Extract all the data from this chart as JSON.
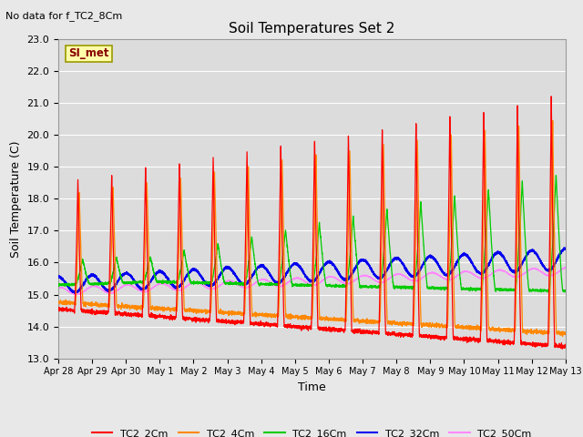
{
  "title": "Soil Temperatures Set 2",
  "top_left_note": "No data for f_TC2_8Cm",
  "xlabel": "Time",
  "ylabel": "Soil Temperature (C)",
  "ylim": [
    13.0,
    23.0
  ],
  "yticks": [
    13.0,
    14.0,
    15.0,
    16.0,
    17.0,
    18.0,
    19.0,
    20.0,
    21.0,
    22.0,
    23.0
  ],
  "fig_bg_color": "#e8e8e8",
  "plot_bg_color": "#dcdcdc",
  "annotation_text": "SI_met",
  "annotation_bg": "#ffffaa",
  "annotation_border": "#999900",
  "annotation_text_color": "#880000",
  "series_colors": {
    "TC2_2Cm": "#ff0000",
    "TC2_4Cm": "#ff8800",
    "TC2_16Cm": "#00cc00",
    "TC2_32Cm": "#0000ee",
    "TC2_50Cm": "#ff88ff"
  },
  "x_tick_labels": [
    "Apr 28",
    "Apr 29",
    "Apr 30",
    "May 1",
    "May 2",
    "May 3",
    "May 4",
    "May 5",
    "May 6",
    "May 7",
    "May 8",
    "May 9",
    "May 10",
    "May 11",
    "May 12",
    "May 13"
  ],
  "legend_entries": [
    "TC2_2Cm",
    "TC2_4Cm",
    "TC2_16Cm",
    "TC2_32Cm",
    "TC2_50Cm"
  ]
}
